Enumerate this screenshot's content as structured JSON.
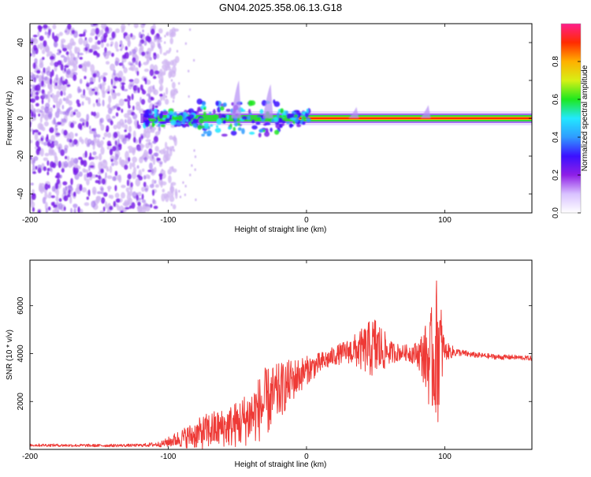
{
  "title": "GN04.2025.358.06.13.G18",
  "colors": {
    "snr_line": "#ee3a36",
    "scatter_low": "#7a1fe8",
    "scatter_faint": "#cfb4f2",
    "axis": "#000000",
    "gradient_stops": [
      "#ffffff",
      "#d9c2ff",
      "#8f1fe6",
      "#3b10ff",
      "#2f9bff",
      "#22e8ff",
      "#1ee81e",
      "#d7f015",
      "#ffb000",
      "#ff2b00",
      "#ff1e8c"
    ]
  },
  "chart_data": [
    {
      "type": "heatmap",
      "name": "spectrogram",
      "xlabel": "Height of straight line (km)",
      "ylabel": "Frequency (Hz)",
      "xlim": [
        -200,
        163
      ],
      "ylim": [
        -50,
        50
      ],
      "xticks": [
        -200,
        -100,
        0,
        100
      ],
      "xtick_labels": [
        "-200",
        "-100",
        "0",
        "100"
      ],
      "yticks": [
        -40,
        -20,
        0,
        20,
        40
      ],
      "ytick_labels": [
        "-40",
        "-20",
        "0",
        "20",
        "40"
      ],
      "colorbar": {
        "label": "Normalized spectral amplitude",
        "range": [
          0.0,
          1.0
        ],
        "ticks": [
          0.0,
          0.2,
          0.4,
          0.6,
          0.8
        ],
        "tick_labels": [
          "0.0",
          "0.2",
          "0.4",
          "0.6",
          "0.8"
        ]
      },
      "noise_region_x": [
        -200,
        -105
      ],
      "signal_trace": {
        "frequency": 0,
        "x_start": -120,
        "x_end": 163,
        "spikes": [
          {
            "x": -50,
            "freq_top": 20
          },
          {
            "x": -27,
            "freq_top": 18
          },
          {
            "x": 35,
            "freq_top": 6
          },
          {
            "x": 87,
            "freq_top": 7
          }
        ]
      }
    },
    {
      "type": "line",
      "name": "snr",
      "xlabel": "Height of straight line (km)",
      "ylabel": "SNR (10 * v/v)",
      "xlim": [
        -200,
        163
      ],
      "ylim": [
        0,
        7900
      ],
      "xticks": [
        -200,
        -100,
        0,
        100
      ],
      "xtick_labels": [
        "-200",
        "-100",
        "0",
        "100"
      ],
      "yticks": [
        2000,
        4000,
        6000
      ],
      "ytick_labels": [
        "2000",
        "4000",
        "6000"
      ],
      "series": [
        {
          "name": "SNR",
          "x": [
            -200,
            -150,
            -120,
            -105,
            -95,
            -80,
            -70,
            -60,
            -50,
            -40,
            -30,
            -20,
            -10,
            0,
            10,
            20,
            30,
            40,
            50,
            60,
            70,
            80,
            85,
            90,
            95,
            100,
            110,
            120,
            130,
            140,
            150,
            163
          ],
          "mean": [
            180,
            160,
            170,
            220,
            400,
            620,
            800,
            900,
            1050,
            1400,
            1900,
            2400,
            2900,
            3300,
            3600,
            3900,
            4100,
            4150,
            4250,
            4050,
            4050,
            4000,
            3900,
            3600,
            4300,
            4100,
            4050,
            3950,
            3900,
            3850,
            3850,
            3800
          ],
          "amp": [
            60,
            60,
            60,
            120,
            300,
            600,
            800,
            800,
            1000,
            1200,
            1500,
            1200,
            900,
            600,
            450,
            400,
            500,
            900,
            1400,
            500,
            300,
            500,
            1200,
            2200,
            3200,
            400,
            150,
            120,
            110,
            110,
            100,
            100
          ]
        }
      ]
    }
  ]
}
